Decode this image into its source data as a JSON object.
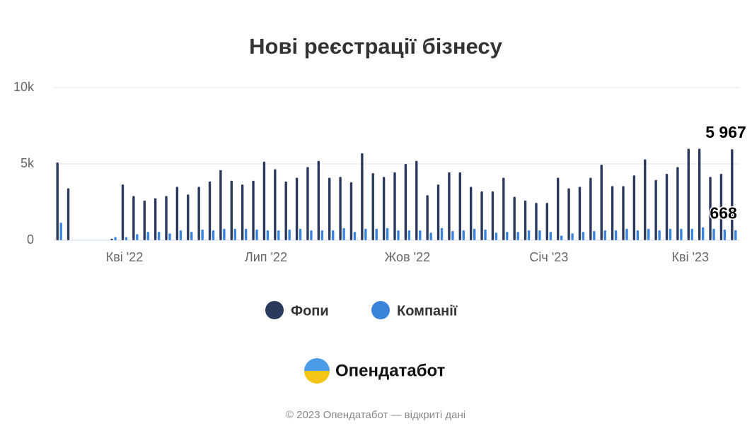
{
  "chart_data": {
    "type": "bar",
    "title": "Нові реєстрації бізнесу",
    "categories": [
      null,
      null,
      null,
      null,
      null,
      null,
      "Кві '22",
      null,
      null,
      null,
      null,
      null,
      null,
      null,
      null,
      null,
      null,
      null,
      null,
      "Лип '22",
      null,
      null,
      null,
      null,
      null,
      null,
      null,
      null,
      null,
      null,
      null,
      null,
      "Жов '22",
      null,
      null,
      null,
      null,
      null,
      null,
      null,
      null,
      null,
      null,
      null,
      null,
      "Січ '23",
      null,
      null,
      null,
      null,
      null,
      null,
      null,
      null,
      null,
      null,
      null,
      null,
      "Кві '23",
      null,
      null,
      null,
      null
    ],
    "series": [
      {
        "name": "Фопи",
        "color": "#2b3a5c",
        "values": [
          5100,
          3400,
          0,
          0,
          0,
          100,
          3650,
          2900,
          2600,
          2750,
          2900,
          3500,
          3000,
          3500,
          3850,
          4600,
          3900,
          3650,
          3900,
          5150,
          4650,
          3850,
          4100,
          4800,
          5200,
          4100,
          4150,
          3800,
          5700,
          4400,
          4150,
          4450,
          5000,
          5200,
          2950,
          3650,
          4450,
          4450,
          3500,
          3200,
          3200,
          4100,
          2850,
          2600,
          2450,
          2450,
          4100,
          3400,
          3500,
          4100,
          4950,
          3550,
          3550,
          4250,
          5300,
          3950,
          4350,
          4800,
          6000,
          6000,
          4150,
          4350,
          5967
        ],
        "value_labels": [
          null,
          null,
          null,
          null,
          null,
          null,
          null,
          null,
          null,
          null,
          null,
          null,
          null,
          null,
          null,
          null,
          null,
          null,
          null,
          null,
          null,
          null,
          null,
          null,
          null,
          null,
          null,
          null,
          null,
          null,
          null,
          null,
          null,
          null,
          null,
          null,
          null,
          null,
          null,
          null,
          null,
          null,
          null,
          null,
          null,
          null,
          null,
          null,
          null,
          null,
          null,
          null,
          null,
          null,
          null,
          null,
          null,
          null,
          null,
          null,
          null,
          null,
          "5 967"
        ]
      },
      {
        "name": "Компанії",
        "color": "#3a84dc",
        "values": [
          1150,
          0,
          0,
          0,
          0,
          200,
          200,
          400,
          550,
          550,
          450,
          650,
          550,
          700,
          650,
          750,
          750,
          750,
          700,
          650,
          650,
          700,
          750,
          650,
          650,
          650,
          800,
          550,
          750,
          750,
          800,
          650,
          650,
          650,
          500,
          800,
          600,
          650,
          750,
          700,
          500,
          550,
          550,
          650,
          650,
          550,
          300,
          450,
          550,
          600,
          650,
          650,
          750,
          650,
          750,
          650,
          750,
          750,
          750,
          850,
          750,
          700,
          668
        ],
        "value_labels": [
          null,
          null,
          null,
          null,
          null,
          null,
          null,
          null,
          null,
          null,
          null,
          null,
          null,
          null,
          null,
          null,
          null,
          null,
          null,
          null,
          null,
          null,
          null,
          null,
          null,
          null,
          null,
          null,
          null,
          null,
          null,
          null,
          null,
          null,
          null,
          null,
          null,
          null,
          null,
          null,
          null,
          null,
          null,
          null,
          null,
          null,
          null,
          null,
          null,
          null,
          null,
          null,
          null,
          null,
          null,
          null,
          null,
          null,
          null,
          null,
          null,
          null,
          "668"
        ]
      }
    ],
    "ylim": [
      0,
      10000
    ],
    "yticks": [
      0,
      {
        "value": 5000,
        "label": "5k"
      },
      {
        "value": 10000,
        "label": "10k"
      }
    ],
    "grid": true
  },
  "logo": "Опендатабот",
  "footer": "© 2023 Опендатабот — відкриті дані"
}
